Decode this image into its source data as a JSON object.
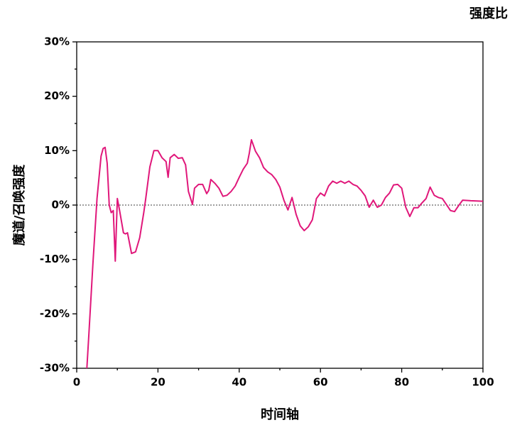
{
  "chart_data": {
    "type": "line",
    "title": "强度比",
    "x_label": "时间轴",
    "y_label": "魔道/召唤强度",
    "color": "#e0177a",
    "x": [
      2.5,
      3,
      4,
      5,
      6,
      6.5,
      7,
      7.5,
      8,
      8.5,
      9,
      9.5,
      10,
      10.5,
      11.5,
      12,
      12.5,
      13.5,
      14.5,
      15.5,
      16.5,
      17,
      18,
      19,
      20,
      21,
      22,
      22.5,
      23,
      24,
      25,
      26,
      26.8,
      27.5,
      28.5,
      29,
      30,
      31,
      32,
      32.5,
      33,
      34,
      35,
      36,
      37,
      38,
      39,
      40,
      41,
      42,
      42.5,
      43,
      44,
      45,
      46,
      47,
      48,
      49,
      50,
      51,
      52,
      53,
      54,
      55,
      56,
      57,
      58,
      59,
      60,
      61,
      62,
      63,
      64,
      65,
      66,
      67,
      68,
      69,
      70,
      71,
      72,
      73,
      74,
      75,
      76,
      77,
      78,
      79,
      80,
      81,
      82,
      83,
      84,
      85,
      86,
      87,
      88,
      89,
      90,
      91,
      92,
      93,
      94,
      95,
      97,
      100
    ],
    "values": [
      -30,
      -23.6,
      -10.6,
      1.2,
      9,
      10.4,
      10.6,
      7.7,
      0,
      -1.4,
      -1,
      -10.3,
      1.2,
      -0.8,
      -5.1,
      -5.3,
      -5.1,
      -8.9,
      -8.6,
      -6,
      -1.4,
      1.2,
      7,
      10,
      10,
      8.7,
      8,
      5.1,
      8.7,
      9.3,
      8.6,
      8.7,
      7.4,
      2.5,
      0.1,
      3.1,
      3.8,
      3.8,
      2.1,
      2.7,
      4.7,
      4,
      3.1,
      1.6,
      1.8,
      2.5,
      3.5,
      5.1,
      6.6,
      7.7,
      9.6,
      12,
      9.9,
      8.7,
      6.9,
      6.1,
      5.6,
      4.7,
      3.3,
      0.9,
      -0.9,
      1.4,
      -1.7,
      -3.8,
      -4.7,
      -4,
      -2.7,
      1.2,
      2.2,
      1.7,
      3.5,
      4.4,
      4,
      4.4,
      4,
      4.4,
      3.8,
      3.5,
      2.7,
      1.7,
      -0.4,
      0.9,
      -0.4,
      0,
      1.4,
      2.2,
      3.7,
      3.8,
      3.1,
      -0.4,
      -2.1,
      -0.5,
      -0.5,
      0.4,
      1.2,
      3.3,
      1.8,
      1.4,
      1.2,
      0.1,
      -1,
      -1.2,
      -0.1,
      0.9,
      0.8,
      0.7
    ],
    "xlim": [
      0,
      100
    ],
    "xticks": [
      0,
      20,
      40,
      60,
      80,
      100
    ],
    "xminorticks": [
      10,
      30,
      50,
      70,
      90
    ],
    "ylim": [
      -30,
      30
    ],
    "yticks": [
      {
        "value": -30,
        "label": "-30%"
      },
      {
        "value": -20,
        "label": "-20%"
      },
      {
        "value": -10,
        "label": "-10%"
      },
      {
        "value": 0,
        "label": "0%"
      },
      {
        "value": 10,
        "label": "10%"
      },
      {
        "value": 20,
        "label": "20%"
      },
      {
        "value": 30,
        "label": "30%"
      }
    ],
    "yminorticks": [
      -25,
      -15,
      -5,
      5,
      15,
      25
    ],
    "zero_line": true
  }
}
